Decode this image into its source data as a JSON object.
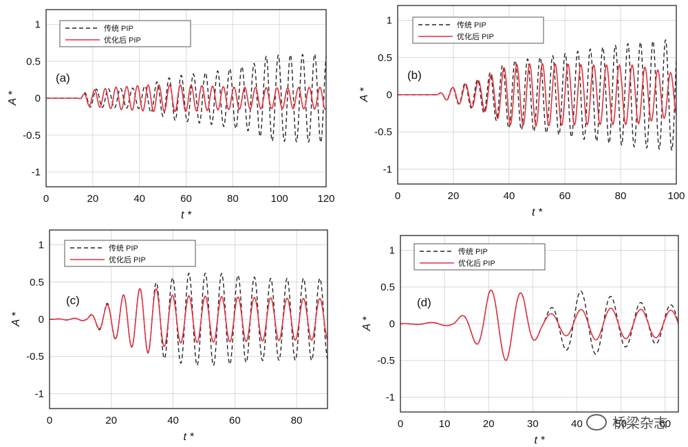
{
  "colors": {
    "traditional": "#222222",
    "optimized": "#e0303c",
    "grid": "#d0d0d0",
    "frame": "#333333"
  },
  "watermark": {
    "text": "桥梁杂志",
    "icon": "wechat-icon"
  },
  "chart_data": [
    {
      "type": "line",
      "panel_label": "(a)",
      "xlabel": "t *",
      "ylabel": "A *",
      "xlim": [
        0,
        120
      ],
      "ylim": [
        -1.2,
        1.2
      ],
      "xticks": [
        "0",
        "20",
        "40",
        "60",
        "80",
        "100",
        "120"
      ],
      "yticks": [
        "-1",
        "-0.5",
        "0",
        "0.5",
        "1"
      ],
      "legend": [
        "传统 PIP",
        "优化后 PIP"
      ],
      "legend_position": "top-left",
      "onset": 15,
      "series": [
        {
          "name": "传统 PIP",
          "style": "dashed",
          "period": 5.2,
          "envelope": {
            "t": [
              0,
              14,
              18,
              40,
              55,
              70,
              88,
              95,
              120
            ],
            "a": [
              0,
              0,
              0.12,
              0.14,
              0.3,
              0.35,
              0.45,
              0.58,
              0.6
            ]
          }
        },
        {
          "name": "优化后 PIP",
          "style": "solid",
          "period": 4.6,
          "envelope": {
            "t": [
              0,
              14,
              18,
              30,
              45,
              60,
              80,
              100,
              120
            ],
            "a": [
              0,
              0,
              0.1,
              0.15,
              0.18,
              0.18,
              0.15,
              0.14,
              0.15
            ]
          }
        }
      ]
    },
    {
      "type": "line",
      "panel_label": "(b)",
      "xlabel": "t *",
      "ylabel": "A *",
      "xlim": [
        0,
        100
      ],
      "ylim": [
        -1.2,
        1.2
      ],
      "xticks": [
        "0",
        "20",
        "40",
        "60",
        "80",
        "100"
      ],
      "yticks": [
        "-1",
        "-0.5",
        "0",
        "0.5",
        "1"
      ],
      "legend": [
        "传统 PIP",
        "优化后 PIP"
      ],
      "legend_position": "top-left",
      "onset": 14,
      "series": [
        {
          "name": "传统 PIP",
          "style": "dashed",
          "period": 4.5,
          "envelope": {
            "t": [
              0,
              14,
              18,
              30,
              40,
              55,
              70,
              85,
              100
            ],
            "a": [
              0,
              0,
              0.08,
              0.22,
              0.45,
              0.52,
              0.62,
              0.7,
              0.75
            ]
          }
        },
        {
          "name": "优化后 PIP",
          "style": "solid",
          "period": 4.6,
          "envelope": {
            "t": [
              0,
              14,
              18,
              30,
              40,
              50,
              70,
              85,
              100
            ],
            "a": [
              0,
              0,
              0.08,
              0.2,
              0.4,
              0.42,
              0.4,
              0.4,
              0.28
            ]
          }
        }
      ]
    },
    {
      "type": "line",
      "panel_label": "(c)",
      "xlabel": "t *",
      "ylabel": "A *",
      "xlim": [
        0,
        90
      ],
      "ylim": [
        -1.2,
        1.2
      ],
      "xticks": [
        "0",
        "20",
        "40",
        "60",
        "80"
      ],
      "yticks": [
        "-1",
        "-0.5",
        "0",
        "0.5",
        "1"
      ],
      "legend": [
        "传统 PIP",
        "优化后 PIP"
      ],
      "legend_position": "top-left",
      "onset": 12,
      "series": [
        {
          "name": "传统 PIP",
          "style": "dashed",
          "period": 5.3,
          "envelope": {
            "t": [
              0,
              12,
              18,
              25,
              35,
              45,
              55,
              70,
              90
            ],
            "a": [
              0,
              0.02,
              0.2,
              0.35,
              0.5,
              0.62,
              0.62,
              0.55,
              0.55
            ]
          }
        },
        {
          "name": "优化后 PIP",
          "style": "solid",
          "period": 5.3,
          "envelope": {
            "t": [
              0,
              12,
              18,
              25,
              32,
              40,
              60,
              80,
              90
            ],
            "a": [
              0,
              0.02,
              0.18,
              0.35,
              0.45,
              0.32,
              0.3,
              0.28,
              0.28
            ]
          }
        }
      ]
    },
    {
      "type": "line",
      "panel_label": "(d)",
      "xlabel": "t *",
      "ylabel": "A *",
      "xlim": [
        0,
        63
      ],
      "ylim": [
        -1.2,
        1.2
      ],
      "xticks": [
        "0",
        "10",
        "20",
        "30",
        "40",
        "50",
        "60"
      ],
      "yticks": [
        "-1",
        "-0.5",
        "0",
        "0.5",
        "1"
      ],
      "legend": [
        "传统 PIP",
        "优化后 PIP"
      ],
      "legend_position": "top-left",
      "onset": 12,
      "series": [
        {
          "name": "传统 PIP",
          "style": "dashed",
          "period": 6.8,
          "envelope": {
            "t": [
              0,
              12,
              16,
              20,
              24,
              28,
              32,
              36,
              40,
              46,
              52,
              63
            ],
            "a": [
              0,
              0.03,
              0.2,
              0.45,
              0.5,
              0.4,
              0.12,
              0.3,
              0.45,
              0.4,
              0.3,
              0.25
            ]
          }
        },
        {
          "name": "优化后 PIP",
          "style": "solid",
          "period": 6.8,
          "envelope": {
            "t": [
              0,
              12,
              16,
              20,
              24,
              28,
              32,
              36,
              44,
              52,
              63
            ],
            "a": [
              0,
              0.03,
              0.2,
              0.45,
              0.5,
              0.4,
              0.12,
              0.15,
              0.22,
              0.2,
              0.18
            ]
          }
        }
      ]
    }
  ]
}
